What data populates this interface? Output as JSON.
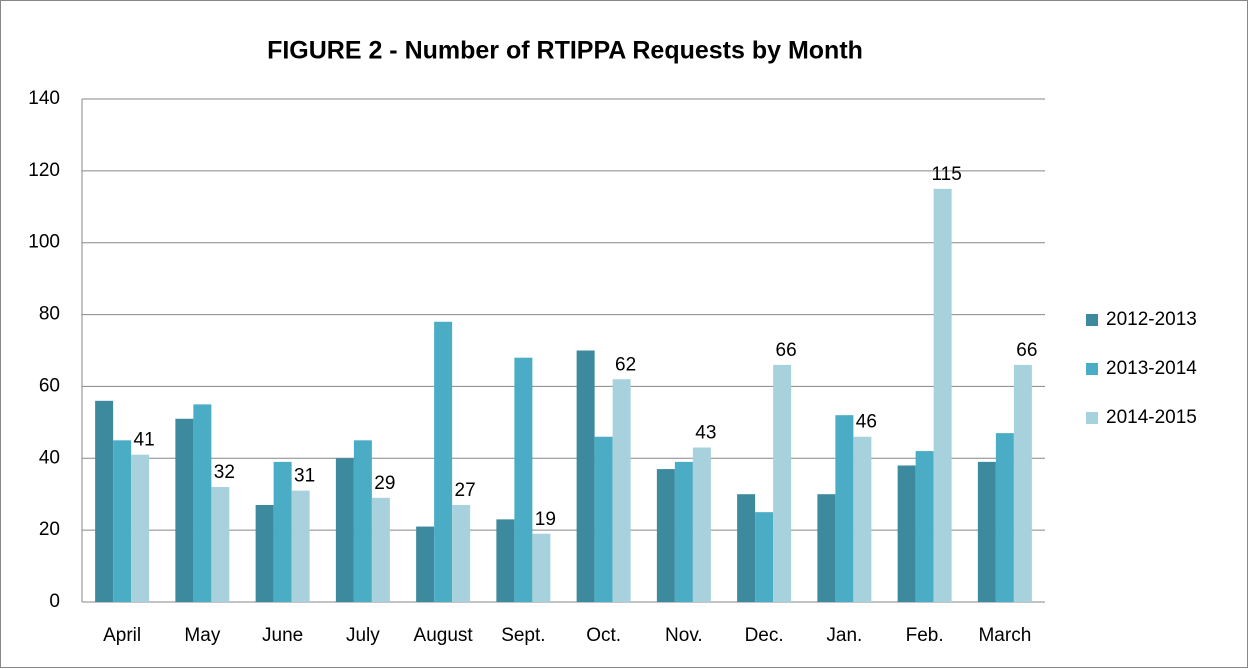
{
  "chart_data": {
    "type": "bar",
    "title": "FIGURE 2 - Number of RTIPPA Requests by Month",
    "categories": [
      "April",
      "May",
      "June",
      "July",
      "August",
      "Sept.",
      "Oct.",
      "Nov.",
      "Dec.",
      "Jan.",
      "Feb.",
      "March"
    ],
    "series": [
      {
        "name": "2012-2013",
        "color": "#3d8a9e",
        "values": [
          56,
          51,
          27,
          40,
          21,
          23,
          70,
          37,
          30,
          30,
          38,
          39
        ]
      },
      {
        "name": "2013-2014",
        "color": "#4bacc6",
        "values": [
          45,
          55,
          39,
          45,
          78,
          68,
          46,
          39,
          25,
          52,
          42,
          47
        ]
      },
      {
        "name": "2014-2015",
        "color": "#a8d1de",
        "values": [
          41,
          32,
          31,
          29,
          27,
          19,
          62,
          43,
          66,
          46,
          115,
          66
        ],
        "data_labels": true
      }
    ],
    "ylim": [
      0,
      140
    ],
    "yticks": [
      0,
      20,
      40,
      60,
      80,
      100,
      120,
      140
    ],
    "grid": true,
    "legend": "right"
  }
}
